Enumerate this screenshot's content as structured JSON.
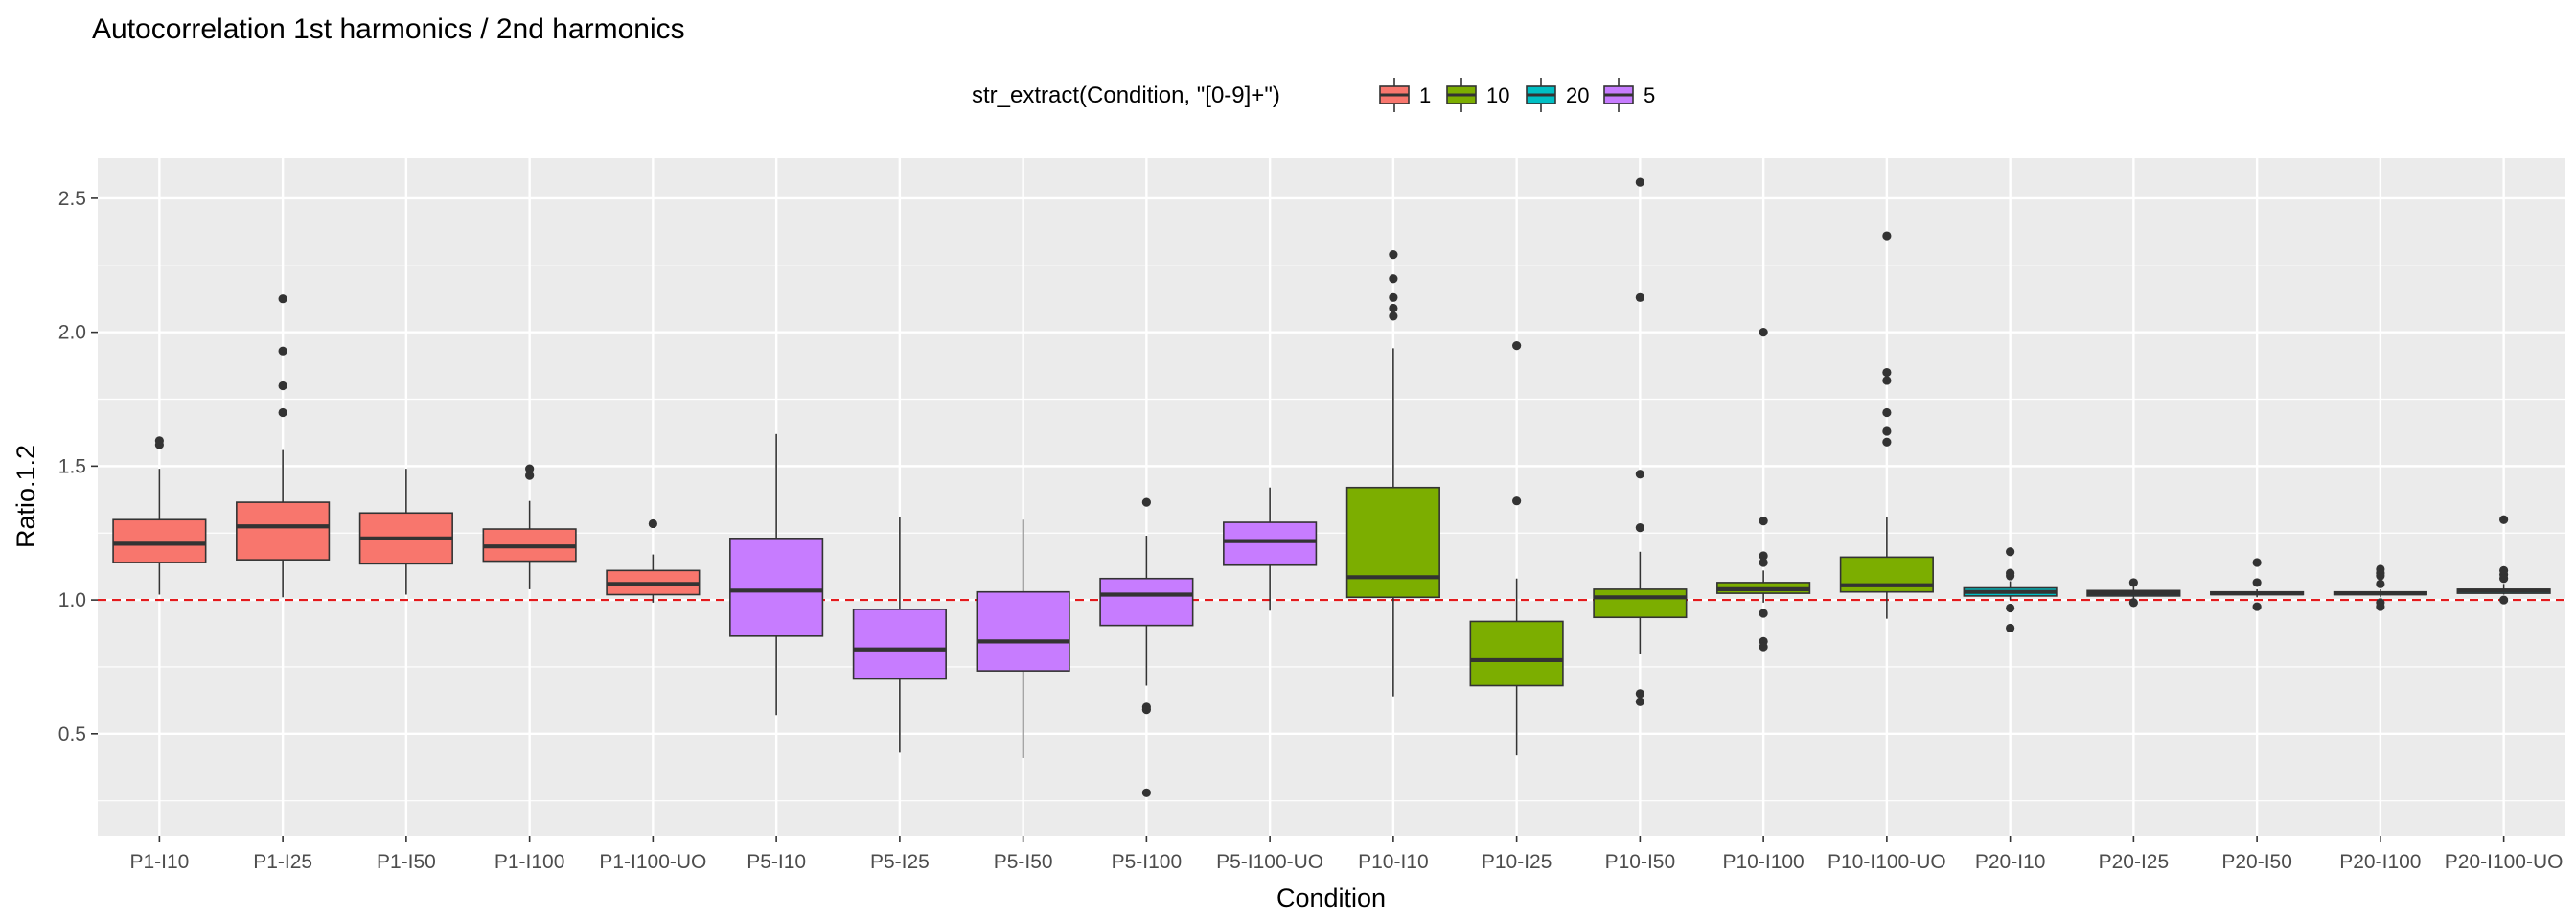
{
  "chart_data": {
    "type": "box",
    "title": "Autocorrelation 1st harmonics / 2nd harmonics",
    "xlabel": "Condition",
    "ylabel": "Ratio.1.2",
    "ylim": [
      0.12,
      2.65
    ],
    "yticks": [
      0.5,
      1.0,
      1.5,
      2.0,
      2.5
    ],
    "grid": true,
    "reference_line": {
      "y": 1.0,
      "style": "dashed",
      "color": "#e41a1c"
    },
    "legend": {
      "title": "str_extract(Condition, \"[0-9]+\")",
      "position": "top",
      "entries": [
        {
          "label": "1",
          "color": "#F8766D"
        },
        {
          "label": "10",
          "color": "#7CAE00"
        },
        {
          "label": "20",
          "color": "#00BFC4"
        },
        {
          "label": "5",
          "color": "#C77CFF"
        }
      ]
    },
    "categories": [
      "P1-I10",
      "P1-I25",
      "P1-I50",
      "P1-I100",
      "P1-I100-UO",
      "P5-I10",
      "P5-I25",
      "P5-I50",
      "P5-I100",
      "P5-I100-UO",
      "P10-I10",
      "P10-I25",
      "P10-I50",
      "P10-I100",
      "P10-I100-UO",
      "P20-I10",
      "P20-I25",
      "P20-I50",
      "P20-I100",
      "P20-I100-UO"
    ],
    "boxes": [
      {
        "group": "1",
        "whisker_low": 1.02,
        "q1": 1.14,
        "median": 1.21,
        "q3": 1.3,
        "whisker_high": 1.49,
        "outliers": [
          1.58,
          1.595
        ]
      },
      {
        "group": "1",
        "whisker_low": 1.01,
        "q1": 1.15,
        "median": 1.275,
        "q3": 1.365,
        "whisker_high": 1.56,
        "outliers": [
          1.7,
          1.8,
          1.93,
          2.125
        ]
      },
      {
        "group": "1",
        "whisker_low": 1.02,
        "q1": 1.135,
        "median": 1.23,
        "q3": 1.325,
        "whisker_high": 1.49,
        "outliers": []
      },
      {
        "group": "1",
        "whisker_low": 1.04,
        "q1": 1.145,
        "median": 1.2,
        "q3": 1.265,
        "whisker_high": 1.37,
        "outliers": [
          1.465,
          1.49
        ]
      },
      {
        "group": "1",
        "whisker_low": 0.99,
        "q1": 1.02,
        "median": 1.06,
        "q3": 1.11,
        "whisker_high": 1.17,
        "outliers": [
          1.285
        ]
      },
      {
        "group": "5",
        "whisker_low": 0.57,
        "q1": 0.865,
        "median": 1.035,
        "q3": 1.23,
        "whisker_high": 1.62,
        "outliers": []
      },
      {
        "group": "5",
        "whisker_low": 0.43,
        "q1": 0.705,
        "median": 0.815,
        "q3": 0.965,
        "whisker_high": 1.31,
        "outliers": []
      },
      {
        "group": "5",
        "whisker_low": 0.41,
        "q1": 0.735,
        "median": 0.845,
        "q3": 1.03,
        "whisker_high": 1.3,
        "outliers": []
      },
      {
        "group": "5",
        "whisker_low": 0.68,
        "q1": 0.905,
        "median": 1.02,
        "q3": 1.08,
        "whisker_high": 1.24,
        "outliers": [
          1.365,
          0.6,
          0.59,
          0.28
        ]
      },
      {
        "group": "5",
        "whisker_low": 0.96,
        "q1": 1.13,
        "median": 1.22,
        "q3": 1.29,
        "whisker_high": 1.42,
        "outliers": []
      },
      {
        "group": "10",
        "whisker_low": 0.64,
        "q1": 1.01,
        "median": 1.085,
        "q3": 1.42,
        "whisker_high": 1.94,
        "outliers": [
          2.06,
          2.09,
          2.13,
          2.2,
          2.29
        ]
      },
      {
        "group": "10",
        "whisker_low": 0.42,
        "q1": 0.68,
        "median": 0.775,
        "q3": 0.92,
        "whisker_high": 1.08,
        "outliers": [
          1.37,
          1.95
        ]
      },
      {
        "group": "10",
        "whisker_low": 0.8,
        "q1": 0.935,
        "median": 1.01,
        "q3": 1.04,
        "whisker_high": 1.18,
        "outliers": [
          1.27,
          1.47,
          2.13,
          2.56,
          0.65,
          0.62
        ]
      },
      {
        "group": "10",
        "whisker_low": 0.99,
        "q1": 1.025,
        "median": 1.04,
        "q3": 1.065,
        "whisker_high": 1.11,
        "outliers": [
          1.14,
          1.165,
          1.295,
          2.0,
          0.95,
          0.845,
          0.825
        ]
      },
      {
        "group": "10",
        "whisker_low": 0.93,
        "q1": 1.03,
        "median": 1.055,
        "q3": 1.16,
        "whisker_high": 1.31,
        "outliers": [
          1.59,
          1.63,
          1.7,
          1.82,
          1.85,
          2.36
        ]
      },
      {
        "group": "20",
        "whisker_low": 1.0,
        "q1": 1.015,
        "median": 1.03,
        "q3": 1.045,
        "whisker_high": 1.07,
        "outliers": [
          1.09,
          1.1,
          1.18,
          0.97,
          0.895
        ]
      },
      {
        "group": "20",
        "whisker_low": 1.005,
        "q1": 1.015,
        "median": 1.025,
        "q3": 1.035,
        "whisker_high": 1.05,
        "outliers": [
          1.065,
          0.99
        ]
      },
      {
        "group": "20",
        "whisker_low": 1.01,
        "q1": 1.02,
        "median": 1.025,
        "q3": 1.03,
        "whisker_high": 1.04,
        "outliers": [
          1.065,
          1.14,
          0.975
        ]
      },
      {
        "group": "20",
        "whisker_low": 1.01,
        "q1": 1.02,
        "median": 1.025,
        "q3": 1.03,
        "whisker_high": 1.04,
        "outliers": [
          1.06,
          1.09,
          1.1,
          1.115,
          0.99,
          0.975
        ]
      },
      {
        "group": "20",
        "whisker_low": 1.02,
        "q1": 1.025,
        "median": 1.035,
        "q3": 1.04,
        "whisker_high": 1.06,
        "outliers": [
          1.08,
          1.095,
          1.11,
          1.3,
          1.0
        ]
      }
    ]
  }
}
